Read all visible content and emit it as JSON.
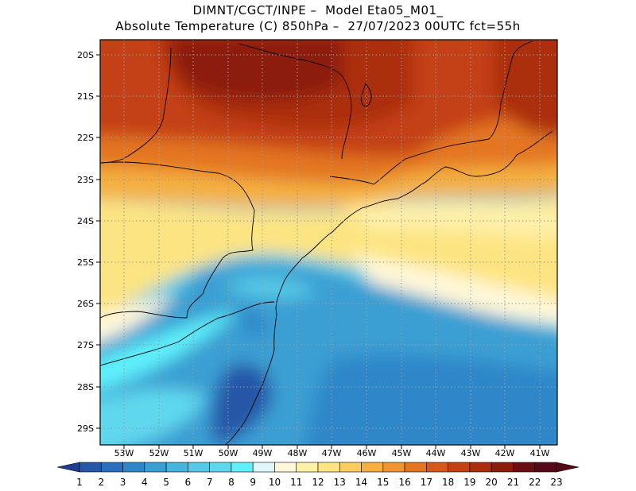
{
  "header": {
    "line1": "DIMNT/CGCT/INPE –  Model Eta05_M01_",
    "line2": "Absolute Temperature (C) 850hPa –  27/07/2023 00UTC fct=55h"
  },
  "map": {
    "lat_labels": [
      "20S",
      "21S",
      "22S",
      "23S",
      "24S",
      "25S",
      "26S",
      "27S",
      "28S",
      "29S"
    ],
    "lon_labels": [
      "53W",
      "52W",
      "51W",
      "50W",
      "49W",
      "48W",
      "47W",
      "46W",
      "45W",
      "44W",
      "43W",
      "42W",
      "41W"
    ]
  },
  "colorbar": {
    "labels": [
      "1",
      "2",
      "3",
      "4",
      "5",
      "6",
      "7",
      "8",
      "9",
      "10",
      "11",
      "12",
      "13",
      "14",
      "15",
      "16",
      "17",
      "18",
      "19",
      "20",
      "21",
      "22",
      "23"
    ],
    "colors": [
      "#1e3f8f",
      "#2556a8",
      "#2a6fbf",
      "#2f87c9",
      "#3a9fd3",
      "#46b5dc",
      "#55c9e6",
      "#5fd8ee",
      "#5ef0fb",
      "#dff6fb",
      "#fff7d9",
      "#fff0a8",
      "#fde482",
      "#f9cd5f",
      "#f5b041",
      "#ee9431",
      "#e47623",
      "#d5591a",
      "#c44113",
      "#ab2d0e",
      "#8c1c0b",
      "#6b0e13",
      "#550818"
    ]
  }
}
